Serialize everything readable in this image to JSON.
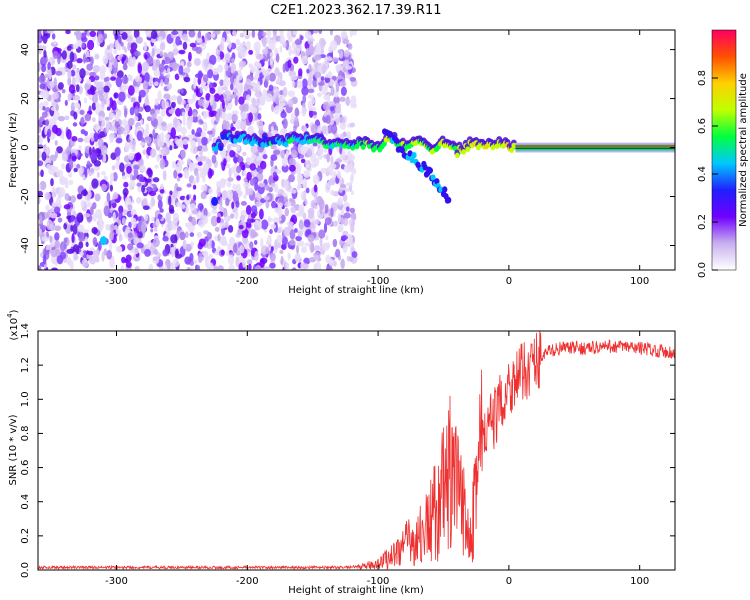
{
  "figure": {
    "title": "C2E1.2023.362.17.39.R11"
  },
  "chart_data": [
    {
      "type": "heatmap",
      "xlabel": "Height of straight line (km)",
      "ylabel": "Frequency (Hz)",
      "xlim": [
        -360,
        127
      ],
      "ylim": [
        -50,
        48
      ],
      "xticks": [
        -300,
        -200,
        -100,
        0,
        100
      ],
      "yticks": [
        -40,
        -20,
        0,
        20,
        40
      ],
      "colorbar": {
        "label": "Normalized spectral amplitude",
        "range": [
          0,
          1
        ],
        "ticks": [
          "0.0",
          "0.2",
          "0.4",
          "0.6",
          "0.8"
        ],
        "colors": [
          "#ffffff",
          "#c8b0f0",
          "#7000ff",
          "#2020ff",
          "#00c8ff",
          "#00ff40",
          "#c0ff00",
          "#ffd000",
          "#ff5000",
          "#ff0060"
        ]
      },
      "noise_region": {
        "x_range": [
          -360,
          -118
        ],
        "y_range": [
          -50,
          48
        ]
      },
      "signal_ridge": [
        {
          "x": -220,
          "y": 4
        },
        {
          "x": -200,
          "y": 3
        },
        {
          "x": -180,
          "y": 2
        },
        {
          "x": -160,
          "y": 3
        },
        {
          "x": -140,
          "y": 2
        },
        {
          "x": -120,
          "y": 1
        },
        {
          "x": -110,
          "y": 1
        },
        {
          "x": -100,
          "y": 0
        },
        {
          "x": -90,
          "y": 4
        },
        {
          "x": -80,
          "y": 0
        },
        {
          "x": -70,
          "y": 3
        },
        {
          "x": -60,
          "y": -2
        },
        {
          "x": -50,
          "y": 2
        },
        {
          "x": -40,
          "y": -2
        },
        {
          "x": -30,
          "y": 1
        },
        {
          "x": -20,
          "y": 0
        },
        {
          "x": -10,
          "y": 1
        },
        {
          "x": 5,
          "y": 0
        },
        {
          "x": 127,
          "y": 0
        }
      ],
      "branch": [
        {
          "x": -95,
          "y": 6
        },
        {
          "x": -80,
          "y": -2
        },
        {
          "x": -65,
          "y": -8
        },
        {
          "x": -55,
          "y": -14
        },
        {
          "x": -45,
          "y": -22
        }
      ],
      "hotspots": [
        {
          "x": -310,
          "y": -38,
          "value": 0.45
        },
        {
          "x": -225,
          "y": -22,
          "value": 0.35
        }
      ]
    },
    {
      "type": "line",
      "xlabel": "Height of straight line (km)",
      "ylabel": "SNR (10 * v/v)",
      "scale_label": "(x10",
      "scale_exponent": "4",
      "xlim": [
        -360,
        127
      ],
      "ylim": [
        0,
        1.4
      ],
      "xticks": [
        -300,
        -200,
        -100,
        0,
        100
      ],
      "yticks": [
        "0.0",
        "0.2",
        "0.4",
        "0.6",
        "0.8",
        "1.0",
        "1.2",
        "1.4"
      ],
      "series": [
        {
          "color": "#ee3030",
          "x": [
            -360,
            -300,
            -200,
            -130,
            -110,
            -100,
            -90,
            -80,
            -70,
            -60,
            -50,
            -45,
            -40,
            -35,
            -30,
            -25,
            -20,
            -15,
            -10,
            -5,
            0,
            5,
            10,
            20,
            30,
            40,
            60,
            80,
            100,
            120,
            127
          ],
          "y": [
            0.015,
            0.015,
            0.015,
            0.015,
            0.02,
            0.04,
            0.08,
            0.15,
            0.18,
            0.28,
            0.45,
            0.55,
            0.45,
            0.35,
            0.25,
            0.55,
            0.75,
            0.85,
            0.9,
            1.0,
            1.08,
            1.12,
            1.15,
            1.22,
            1.28,
            1.3,
            1.3,
            1.31,
            1.3,
            1.28,
            1.27
          ]
        }
      ]
    }
  ]
}
